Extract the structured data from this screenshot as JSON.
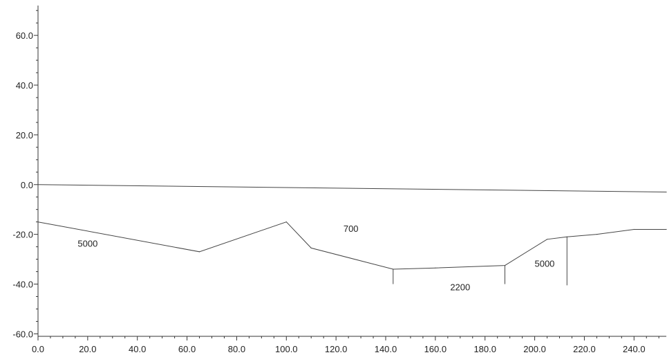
{
  "chart_data": {
    "type": "line",
    "title": "",
    "xlabel": "",
    "ylabel": "",
    "xlim": [
      0,
      253
    ],
    "ylim": [
      -61,
      72
    ],
    "x_ticks": [
      "0.0",
      "20.0",
      "40.0",
      "60.0",
      "80.0",
      "100.0",
      "120.0",
      "140.0",
      "160.0",
      "180.0",
      "200.0",
      "220.0",
      "240.0"
    ],
    "y_ticks": [
      "-60.0",
      "-40.0",
      "-20.0",
      "0.0",
      "20.0",
      "40.0",
      "60.0"
    ],
    "grid": false,
    "legend": "none",
    "colors": {
      "line": "#444444",
      "axis": "#333333",
      "text": "#222222"
    },
    "series": [
      {
        "x": [
          0,
          253
        ],
        "y": [
          0,
          -3
        ]
      },
      {
        "x": [
          0,
          65,
          100,
          110,
          143,
          160,
          188,
          205,
          213,
          225,
          240,
          253
        ],
        "y": [
          -15,
          -27,
          -15,
          -25.5,
          -34,
          -33.5,
          -32.5,
          -22,
          -21,
          -20,
          -18,
          -18
        ]
      }
    ],
    "dividers": [
      {
        "x": 143,
        "y_top": -34,
        "y_bottom": -40
      },
      {
        "x": 188,
        "y_top": -32.5,
        "y_bottom": -40
      },
      {
        "x": 213,
        "y_top": -21,
        "y_bottom": -40.5
      }
    ],
    "annotations": [
      {
        "text": "5000",
        "x": 20,
        "y": -25
      },
      {
        "text": "700",
        "x": 126,
        "y": -19
      },
      {
        "text": "2200",
        "x": 170,
        "y": -42.5
      },
      {
        "text": "5000",
        "x": 204,
        "y": -33
      }
    ]
  }
}
